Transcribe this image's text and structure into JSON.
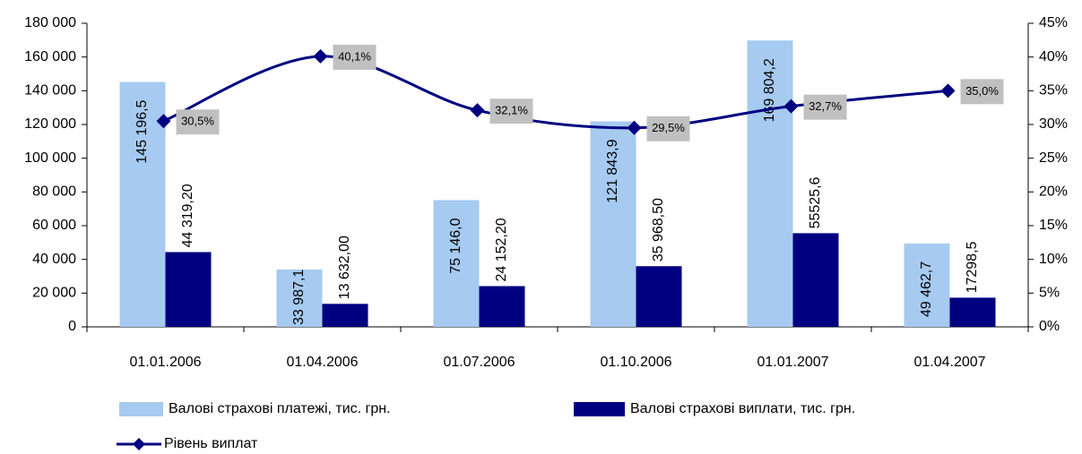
{
  "chart_data": {
    "type": "bar",
    "categories": [
      "01.01.2006",
      "01.04.2006",
      "01.07.2006",
      "01.10.2006",
      "01.01.2007",
      "01.04.2007"
    ],
    "series": [
      {
        "name": "Валові страхові платежі, тис. грн.",
        "color": "#a6caf0",
        "values": [
          145196.5,
          33987.1,
          75146.0,
          121843.9,
          169804.2,
          49462.7
        ],
        "value_labels": [
          "145 196,5",
          "33 987,1",
          "75 146,0",
          "121 843,9",
          "169 804,2",
          "49 462,7"
        ]
      },
      {
        "name": "Валові страхові виплати, тис. грн.",
        "color": "#000080",
        "values": [
          44319.2,
          13632.0,
          24152.2,
          35968.5,
          55525.6,
          17298.5
        ],
        "value_labels": [
          "44 319,20",
          "13 632,00",
          "24 152,20",
          "35 968,50",
          "55525,6",
          "17298,5"
        ]
      },
      {
        "name": "Рівень виплат",
        "color": "#000080",
        "type": "line",
        "axis": "y2",
        "values": [
          30.5,
          40.1,
          32.1,
          29.5,
          32.7,
          35.0
        ],
        "value_labels": [
          "30,5%",
          "40,1%",
          "32,1%",
          "29,5%",
          "32,7%",
          "35,0%"
        ]
      }
    ],
    "ylim": [
      0,
      180000
    ],
    "yticks": [
      0,
      {
        "value": 20000,
        "label": "20 000"
      },
      {
        "value": 40000,
        "label": "40 000"
      },
      {
        "value": 60000,
        "label": "60 000"
      },
      {
        "value": 80000,
        "label": "80 000"
      },
      {
        "value": 100000,
        "label": "100 000"
      },
      {
        "value": 120000,
        "label": "120 000"
      },
      {
        "value": 140000,
        "label": "140 000"
      },
      {
        "value": 160000,
        "label": "160 000"
      },
      {
        "value": 180000,
        "label": "180 000"
      }
    ],
    "y2lim": [
      0,
      45
    ],
    "y2ticks": [
      {
        "value": 0,
        "label": "0%"
      },
      {
        "value": 5,
        "label": "5%"
      },
      {
        "value": 10,
        "label": "10%"
      },
      {
        "value": 15,
        "label": "15%"
      },
      {
        "value": 20,
        "label": "20%"
      },
      {
        "value": 25,
        "label": "25%"
      },
      {
        "value": 30,
        "label": "30%"
      },
      {
        "value": 35,
        "label": "35%"
      },
      {
        "value": 40,
        "label": "40%"
      },
      {
        "value": 45,
        "label": "45%"
      }
    ],
    "legend": "bottom"
  }
}
